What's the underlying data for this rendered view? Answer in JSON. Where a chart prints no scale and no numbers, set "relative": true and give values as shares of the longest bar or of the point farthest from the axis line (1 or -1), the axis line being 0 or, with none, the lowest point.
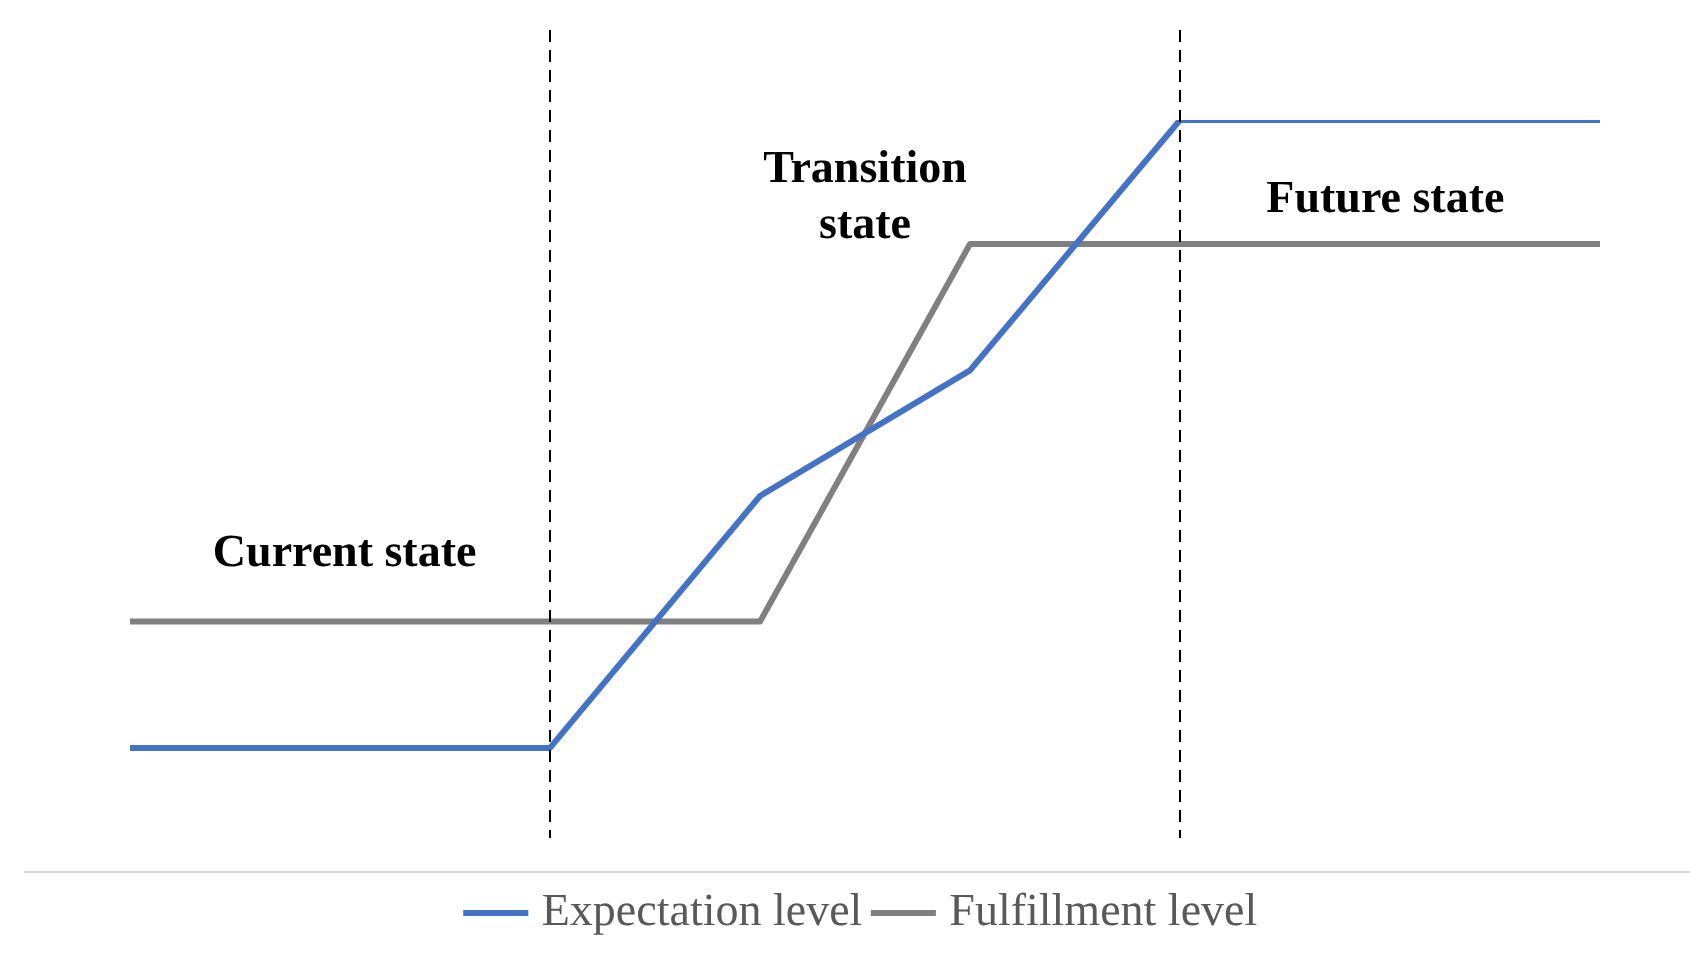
{
  "chart_data": {
    "type": "line",
    "relative": true,
    "categories": [
      null,
      null,
      null,
      null,
      null,
      null,
      null,
      null
    ],
    "series": [
      {
        "name": "Expectation level",
        "color": "#4472c4",
        "values": [
          0.165,
          0.165,
          0.165,
          0.5,
          0.667,
          1,
          1,
          1
        ]
      },
      {
        "name": "Fulfillment level",
        "color": "#808080",
        "values": [
          0.333,
          0.333,
          0.333,
          0.333,
          0.835,
          0.835,
          0.835,
          0.835
        ]
      }
    ],
    "annotations": [
      "Current state",
      "Transition\nstate",
      "Future state"
    ],
    "legend": "bottom",
    "marker": "none",
    "line_style": "solid"
  }
}
